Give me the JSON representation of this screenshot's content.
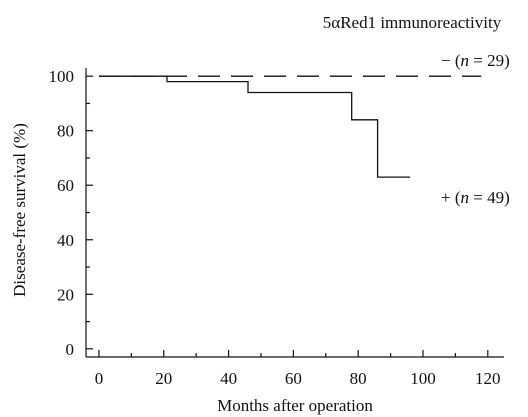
{
  "chart_data": {
    "type": "line",
    "title": "5αRed1 immunoreactivity",
    "xlabel": "Months after operation",
    "ylabel": "Disease-free survival (%)",
    "xlim": [
      -4,
      125
    ],
    "ylim": [
      -3,
      103
    ],
    "xticks": [
      0,
      20,
      40,
      60,
      80,
      100,
      120
    ],
    "yticks": [
      0,
      20,
      40,
      60,
      80,
      100
    ],
    "grid": false,
    "legend": "annotations at right end of curves",
    "series": [
      {
        "name": "− (n = 29)",
        "style": "dashed",
        "x": [
          0,
          118
        ],
        "y": [
          100,
          100
        ]
      },
      {
        "name": "+ (n = 49)",
        "style": "solid-step",
        "x": [
          0,
          21,
          21,
          46,
          46,
          78,
          78,
          86,
          86,
          96
        ],
        "y": [
          100,
          100,
          98,
          98,
          94,
          94,
          84,
          84,
          63,
          63
        ]
      }
    ],
    "annotations": [
      {
        "text": "− (",
        "italic": "n",
        "rest": " = 29)"
      },
      {
        "text": "+ (",
        "italic": "n",
        "rest": " = 49)"
      }
    ]
  }
}
